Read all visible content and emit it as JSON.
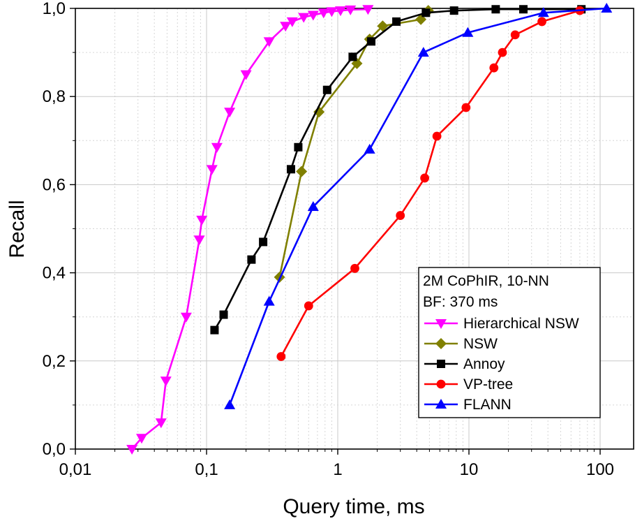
{
  "chart_data": {
    "type": "line",
    "xlabel": "Query time, ms",
    "ylabel": "Recall",
    "x_scale": "log",
    "xlim": [
      0.01,
      180
    ],
    "ylim": [
      0.0,
      1.0
    ],
    "x_ticks": [
      0.01,
      0.1,
      1,
      10,
      100
    ],
    "x_tick_labels": [
      "0,01",
      "0,1",
      "1",
      "10",
      "100"
    ],
    "y_ticks": [
      0.0,
      0.2,
      0.4,
      0.6,
      0.8,
      1.0
    ],
    "y_tick_labels": [
      "0,0",
      "0,2",
      "0,4",
      "0,6",
      "0,8",
      "1,0"
    ],
    "grid": true,
    "legend_position": "bottom-right",
    "legend_title_lines": [
      "2M CoPhIR, 10-NN",
      "BF: 370 ms"
    ],
    "series": [
      {
        "name": "Hierarchical NSW",
        "color": "#ff00ff",
        "marker": "triangle-down",
        "x": [
          0.027,
          0.032,
          0.045,
          0.049,
          0.07,
          0.088,
          0.092,
          0.11,
          0.12,
          0.15,
          0.2,
          0.3,
          0.4,
          0.45,
          0.55,
          0.65,
          0.78,
          0.9,
          1.05,
          1.25,
          1.7
        ],
        "y": [
          0.0,
          0.025,
          0.06,
          0.155,
          0.3,
          0.475,
          0.52,
          0.635,
          0.685,
          0.765,
          0.85,
          0.925,
          0.96,
          0.97,
          0.98,
          0.985,
          0.99,
          0.993,
          0.995,
          0.997,
          0.998
        ]
      },
      {
        "name": "NSW",
        "color": "#808000",
        "marker": "diamond",
        "x": [
          0.36,
          0.53,
          0.72,
          1.4,
          1.75,
          2.2,
          4.3,
          4.9
        ],
        "y": [
          0.39,
          0.63,
          0.765,
          0.875,
          0.93,
          0.96,
          0.975,
          0.995
        ]
      },
      {
        "name": "Annoy",
        "color": "#000000",
        "marker": "square",
        "x": [
          0.115,
          0.135,
          0.22,
          0.27,
          0.44,
          0.5,
          0.83,
          1.3,
          1.8,
          2.8,
          4.7,
          7.7,
          16,
          26,
          72
        ],
        "y": [
          0.27,
          0.305,
          0.43,
          0.47,
          0.635,
          0.685,
          0.815,
          0.89,
          0.925,
          0.97,
          0.99,
          0.995,
          0.998,
          0.998,
          0.998
        ]
      },
      {
        "name": "VP-tree",
        "color": "#ff0000",
        "marker": "circle",
        "x": [
          0.37,
          0.6,
          1.35,
          3.0,
          4.6,
          5.7,
          9.5,
          15.5,
          18,
          22.5,
          36,
          70
        ],
        "y": [
          0.21,
          0.325,
          0.41,
          0.53,
          0.615,
          0.71,
          0.775,
          0.865,
          0.9,
          0.94,
          0.97,
          0.995
        ]
      },
      {
        "name": "FLANN",
        "color": "#0000ff",
        "marker": "triangle-up",
        "x": [
          0.15,
          0.3,
          0.65,
          1.75,
          4.5,
          9.8,
          37,
          112
        ],
        "y": [
          0.1,
          0.335,
          0.55,
          0.68,
          0.9,
          0.945,
          0.99,
          1.0
        ]
      }
    ]
  }
}
